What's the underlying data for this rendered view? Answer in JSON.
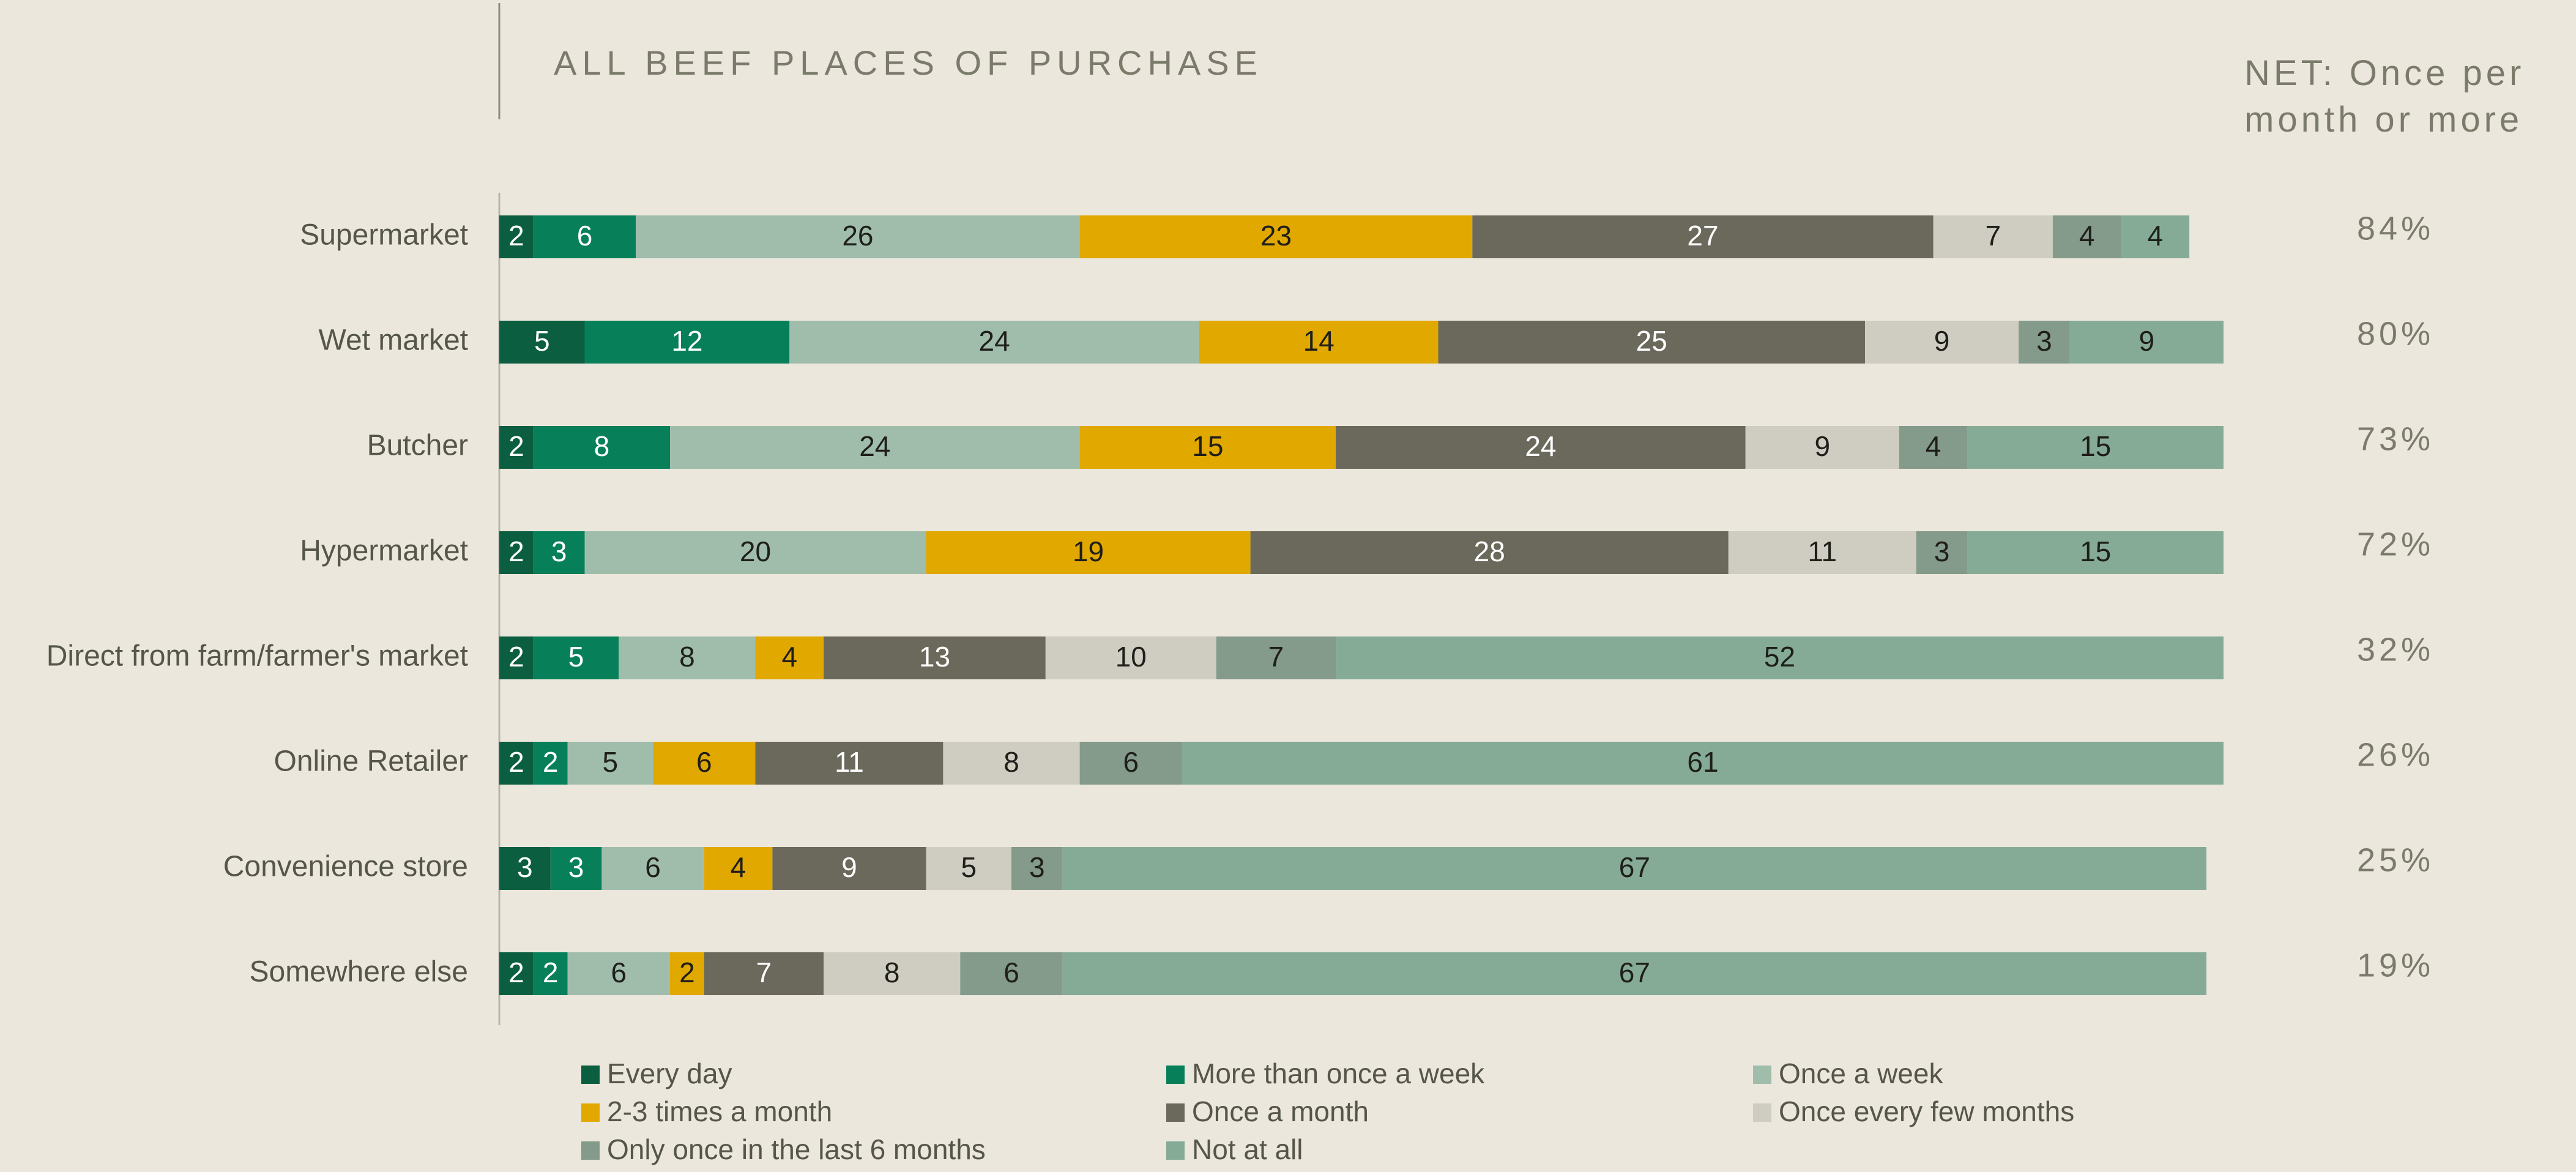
{
  "chart_data": {
    "type": "stacked-bar-horizontal",
    "title": "ALL BEEF PLACES OF PURCHASE",
    "categories": [
      "Supermarket",
      "Wet market",
      "Butcher",
      "Hypermarket",
      "Direct from farm/farmer's market",
      "Online Retailer",
      "Convenience store",
      "Somewhere else"
    ],
    "xlim": [
      0,
      100
    ],
    "series": [
      {
        "name": "Every day",
        "color": "#0b5e40",
        "values": [
          2,
          5,
          2,
          2,
          2,
          2,
          3,
          2
        ]
      },
      {
        "name": "More than once a week",
        "color": "#07805a",
        "values": [
          6,
          12,
          8,
          3,
          5,
          2,
          3,
          2
        ]
      },
      {
        "name": "Once a week",
        "color": "#a0bdac",
        "values": [
          26,
          24,
          24,
          20,
          8,
          5,
          6,
          6
        ]
      },
      {
        "name": "2-3 times a month",
        "color": "#e1a800",
        "values": [
          23,
          14,
          15,
          19,
          4,
          6,
          4,
          2
        ]
      },
      {
        "name": "Once a month",
        "color": "#6b695b",
        "values": [
          27,
          25,
          24,
          28,
          13,
          11,
          9,
          7
        ]
      },
      {
        "name": "Once every few months",
        "color": "#cfcdc1",
        "values": [
          7,
          9,
          9,
          11,
          10,
          8,
          5,
          8
        ]
      },
      {
        "name": "Only once in the last 6 months",
        "color": "#849a8b",
        "values": [
          4,
          3,
          4,
          3,
          7,
          6,
          3,
          6
        ]
      },
      {
        "name": "Not at all",
        "color": "#85ab96",
        "values": [
          4,
          9,
          15,
          15,
          52,
          61,
          67,
          67
        ]
      }
    ],
    "net": {
      "title": "NET: Once per month or more",
      "values": [
        84,
        80,
        73,
        72,
        32,
        26,
        25,
        19
      ],
      "value_labels": [
        "84%",
        "80%",
        "73%",
        "72%",
        "32%",
        "26%",
        "25%",
        "19%"
      ]
    },
    "legend": "bottom"
  }
}
